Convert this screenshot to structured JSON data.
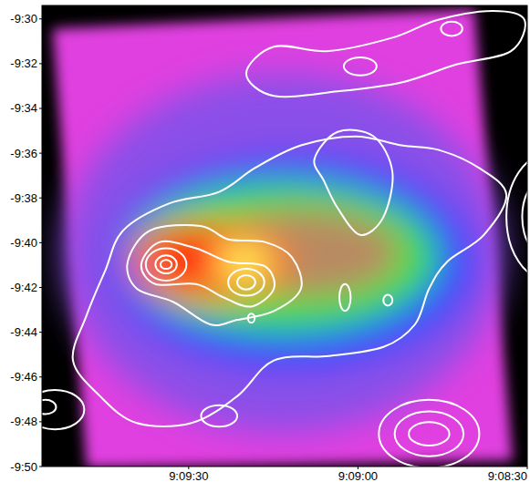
{
  "chart_data": {
    "type": "contour",
    "xlim": [
      32996,
      32910
    ],
    "ylim": [
      -590,
      -569.4
    ],
    "xticks": [
      {
        "value": 32970,
        "label": "9:09:30"
      },
      {
        "value": 32940,
        "label": "9:09:00"
      },
      {
        "value": 32910,
        "label": "9:08:30"
      }
    ],
    "yticks": [
      {
        "value": -570,
        "label": "-9:30"
      },
      {
        "value": -572,
        "label": "-9:32"
      },
      {
        "value": -574,
        "label": "-9:34"
      },
      {
        "value": -576,
        "label": "-9:36"
      },
      {
        "value": -578,
        "label": "-9:38"
      },
      {
        "value": -580,
        "label": "-9:40"
      },
      {
        "value": -582,
        "label": "-9:42"
      },
      {
        "value": -584,
        "label": "-9:44"
      },
      {
        "value": -586,
        "label": "-9:46"
      },
      {
        "value": -588,
        "label": "-9:48"
      },
      {
        "value": -590,
        "label": "-9:50"
      }
    ],
    "image": {
      "footprint": {
        "x": [
          32994.1,
          32919.4,
          32912.6,
          32988.1
        ],
        "y": [
          -570.44,
          -569.56,
          -589.74,
          -590.06
        ],
        "color": "#e040e0"
      },
      "components": [
        {
          "x": 32953.3,
          "y": -580.45,
          "rx": 38.8,
          "ry": 8.01,
          "color": "#8a50e8"
        },
        {
          "x": 32951.7,
          "y": -580.85,
          "rx": 32.3,
          "ry": 4.8,
          "color": "#2a4cff"
        },
        {
          "x": 32953.3,
          "y": -580.65,
          "rx": 27.5,
          "ry": 3.4,
          "color": "#2ee044"
        },
        {
          "x": 32950.1,
          "y": -580.45,
          "rx": 17.8,
          "ry": 2.0,
          "color": "#b98a62"
        },
        {
          "x": 32966.2,
          "y": -580.85,
          "rx": 14.6,
          "ry": 1.8,
          "color": "#ff7a1a"
        },
        {
          "x": 32967.9,
          "y": -580.65,
          "rx": 9.7,
          "ry": 1.2,
          "color": "#ff2010"
        },
        {
          "x": 32960.6,
          "y": -580.85,
          "rx": 4.9,
          "ry": 0.72,
          "color": "#ffff60"
        }
      ]
    },
    "contours": {
      "color": "#ffffff",
      "lines": [
        {
          "x": [
            32984.8,
            32981.6,
            32973.5,
            32964.6,
            32958.2,
            32950.1,
            32940.4,
            32932.3,
            32925.8,
            32918.6,
            32913.7,
            32917.7,
            32924.2,
            32927.4,
            32929.9,
            32935.5,
            32945.2,
            32954.9,
            32961.4,
            32969.5,
            32979.2,
            32985.7,
            32990.5,
            32988.1
          ],
          "y": [
            -581.25,
            -579.45,
            -578.25,
            -577.73,
            -576.65,
            -575.65,
            -575.25,
            -575.65,
            -575.85,
            -576.65,
            -577.85,
            -579.65,
            -580.85,
            -582.05,
            -583.65,
            -584.66,
            -585.06,
            -585.26,
            -586.86,
            -588.06,
            -588.06,
            -586.86,
            -585.26,
            -583.25
          ]
        },
        {
          "x": [
            32980.8,
            32976.8,
            32967.9,
            32963.0,
            32956.5,
            32951.7,
            32950.1,
            32954.9,
            32961.4,
            32966.2,
            32972.7,
            32979.2
          ],
          "y": [
            -580.85,
            -579.45,
            -579.25,
            -579.85,
            -579.97,
            -580.65,
            -582.05,
            -583.05,
            -583.45,
            -583.65,
            -582.65,
            -582.05
          ]
        },
        {
          "x": [
            32978.4,
            32975.1,
            32968.7,
            32963.0,
            32956.5,
            32954.9,
            32958.9,
            32963.8,
            32968.7,
            32975.9
          ],
          "y": [
            -580.97,
            -579.97,
            -580.25,
            -580.85,
            -581.05,
            -582.05,
            -582.85,
            -582.45,
            -581.85,
            -581.85
          ]
        },
        {
          "x": [
            32959.8,
            32954.9,
            32945.2,
            32933.9,
            32925.8,
            32916.1,
            32910.5,
            32912.9,
            32922.6,
            32932.3,
            32943.6,
            32954.9
          ],
          "y": [
            -572.44,
            -571.24,
            -571.44,
            -570.84,
            -570.04,
            -569.64,
            -570.04,
            -571.44,
            -572.04,
            -572.84,
            -573.24,
            -573.44
          ]
        },
        {
          "x": [
            32947.7,
            32943.6,
            32937.2,
            32933.9,
            32935.5,
            32939.6,
            32943.6,
            32946.0
          ],
          "y": [
            -576.25,
            -575.05,
            -575.25,
            -576.85,
            -578.85,
            -579.65,
            -578.45,
            -577.25
          ]
        }
      ],
      "ellipses": [
        {
          "x": 32974.0,
          "y": -580.97,
          "rx": 3.6,
          "ry": 0.72
        },
        {
          "x": 32974.0,
          "y": -580.97,
          "rx": 1.9,
          "ry": 0.4
        },
        {
          "x": 32974.0,
          "y": -580.97,
          "rx": 1.0,
          "ry": 0.2
        },
        {
          "x": 32959.8,
          "y": -581.77,
          "rx": 3.2,
          "ry": 0.6
        },
        {
          "x": 32959.8,
          "y": -581.77,
          "rx": 1.6,
          "ry": 0.32
        },
        {
          "x": 32939.6,
          "y": -572.12,
          "rx": 2.9,
          "ry": 0.4
        },
        {
          "x": 32923.4,
          "y": -570.44,
          "rx": 1.9,
          "ry": 0.32
        },
        {
          "x": 32942.3,
          "y": -582.45,
          "rx": 1.0,
          "ry": 0.6
        },
        {
          "x": 32934.7,
          "y": -582.57,
          "rx": 0.8,
          "ry": 0.24
        },
        {
          "x": 32958.9,
          "y": -583.37,
          "rx": 0.6,
          "ry": 0.2
        },
        {
          "x": 32964.6,
          "y": -587.74,
          "rx": 3.2,
          "ry": 0.48
        },
        {
          "x": 32927.4,
          "y": -588.54,
          "rx": 8.9,
          "ry": 1.52
        },
        {
          "x": 32927.4,
          "y": -588.54,
          "rx": 6.1,
          "ry": 1.0
        },
        {
          "x": 32927.4,
          "y": -588.54,
          "rx": 3.6,
          "ry": 0.52
        },
        {
          "x": 32906.4,
          "y": -578.85,
          "rx": 7.3,
          "ry": 2.8
        },
        {
          "x": 32906.4,
          "y": -578.85,
          "rx": 4.5,
          "ry": 1.8
        },
        {
          "x": 32993.7,
          "y": -587.46,
          "rx": 5.2,
          "ry": 0.88
        },
        {
          "x": 32995.4,
          "y": -587.34,
          "rx": 1.9,
          "ry": 0.32
        }
      ]
    }
  }
}
